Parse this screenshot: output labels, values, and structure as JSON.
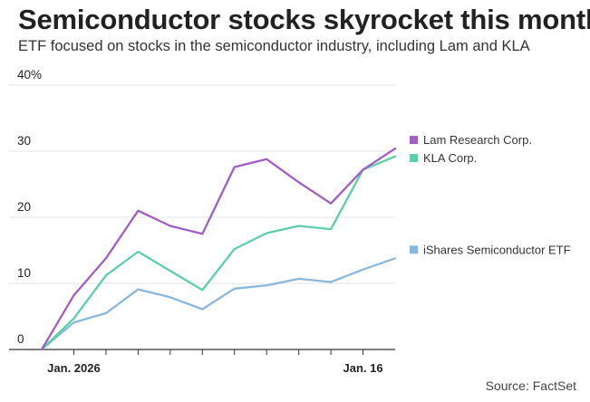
{
  "header": {
    "title": "Semiconductor stocks skyrocket this month",
    "subtitle": "ETF focused on stocks in the semiconductor industry, including Lam and KLA"
  },
  "footer": {
    "source": "Source: FactSet"
  },
  "chart_data": {
    "type": "line",
    "title": "Semiconductor stocks skyrocket this month",
    "subtitle": "ETF focused on stocks in the semiconductor industry, including Lam and KLA",
    "xlabel": "",
    "ylabel": "",
    "x": [
      0,
      1,
      2,
      3,
      4,
      5,
      6,
      7,
      8,
      9,
      10,
      11
    ],
    "x_tick_labels": [
      {
        "x": 1,
        "label": "Jan. 2026"
      },
      {
        "x": 10,
        "label": "Jan. 16"
      }
    ],
    "x_minor_ticks": [
      1,
      2,
      3,
      4,
      5,
      6,
      7,
      8,
      9,
      10
    ],
    "ylim": [
      0,
      40
    ],
    "y_ticks": [
      0,
      10,
      20,
      30,
      40
    ],
    "y_tick_labels": [
      "0",
      "10",
      "20",
      "30",
      "40%"
    ],
    "grid": true,
    "legend_position": "right",
    "series": [
      {
        "name": "Lam Research Corp.",
        "color": "#a15fc2",
        "values": [
          0,
          8.2,
          13.8,
          21.0,
          18.7,
          17.5,
          27.6,
          28.8,
          25.3,
          22.1,
          27.2,
          30.4
        ]
      },
      {
        "name": "KLA Corp.",
        "color": "#5dcfa7",
        "values": [
          0,
          4.7,
          11.2,
          14.8,
          11.9,
          9.0,
          15.2,
          17.6,
          18.7,
          18.2,
          27.2,
          29.2
        ]
      },
      {
        "name": "iShares Semiconductor ETF",
        "color": "#8ab8dc",
        "values": [
          0,
          4.1,
          5.5,
          9.1,
          7.9,
          6.1,
          9.2,
          9.7,
          10.7,
          10.2,
          12.1,
          13.8
        ]
      }
    ]
  }
}
